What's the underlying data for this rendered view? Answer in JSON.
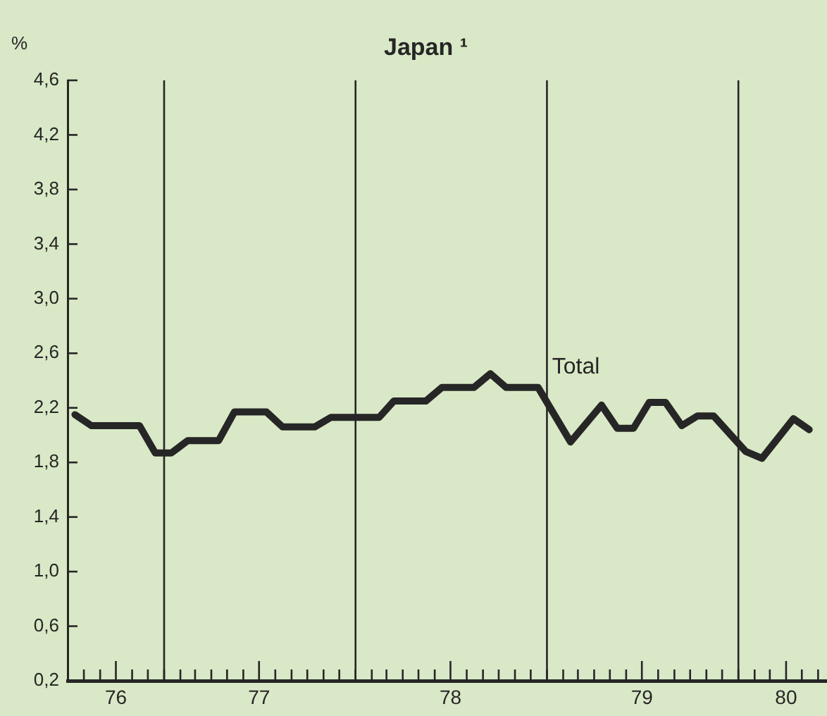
{
  "chart_data": {
    "type": "line",
    "title": "Japan ¹",
    "ylabel": "%",
    "x": [
      "1976-07-15",
      "1976-08-15",
      "1976-11-15",
      "1976-12-15",
      "1977-01-15",
      "1977-02-15",
      "1977-04-15",
      "1977-05-15",
      "1977-07-15",
      "1977-08-15",
      "1977-10-15",
      "1977-11-15",
      "1978-02-15",
      "1978-03-15",
      "1978-05-15",
      "1978-06-15",
      "1978-08-15",
      "1978-09-15",
      "1978-10-15",
      "1978-12-15",
      "1979-02-15",
      "1979-04-15",
      "1979-05-15",
      "1979-06-15",
      "1979-07-15",
      "1979-08-15",
      "1979-09-15",
      "1979-10-15",
      "1979-11-15",
      "1980-01-15",
      "1980-02-15",
      "1980-04-15",
      "1980-05-15"
    ],
    "series": [
      {
        "name": "Total",
        "color": "#262626",
        "values": [
          2.15,
          2.07,
          2.07,
          1.87,
          1.87,
          1.96,
          1.96,
          2.17,
          2.17,
          2.06,
          2.06,
          2.13,
          2.13,
          2.25,
          2.25,
          2.35,
          2.35,
          2.45,
          2.35,
          2.35,
          1.95,
          2.22,
          2.05,
          2.05,
          2.24,
          2.24,
          2.07,
          2.14,
          2.14,
          1.88,
          1.83,
          2.12,
          2.04
        ]
      }
    ],
    "xlim": [
      "1976-07-01",
      "1980-06-18"
    ],
    "xticks": [
      {
        "value": "1976-08",
        "label": null
      },
      {
        "value": "1976-09",
        "label": null
      },
      {
        "value": "1976-10",
        "label": "76"
      },
      {
        "value": "1976-11",
        "label": null
      },
      {
        "value": "1976-12",
        "label": null
      },
      {
        "value": "1977-01",
        "label": null
      },
      {
        "value": "1977-02",
        "label": null
      },
      {
        "value": "1977-03",
        "label": null
      },
      {
        "value": "1977-04",
        "label": null
      },
      {
        "value": "1977-05",
        "label": null
      },
      {
        "value": "1977-06",
        "label": null
      },
      {
        "value": "1977-07",
        "label": "77"
      },
      {
        "value": "1977-08",
        "label": null
      },
      {
        "value": "1977-09",
        "label": null
      },
      {
        "value": "1977-10",
        "label": null
      },
      {
        "value": "1977-11",
        "label": null
      },
      {
        "value": "1977-12",
        "label": null
      },
      {
        "value": "1978-01",
        "label": null
      },
      {
        "value": "1978-02",
        "label": null
      },
      {
        "value": "1978-03",
        "label": null
      },
      {
        "value": "1978-04",
        "label": null
      },
      {
        "value": "1978-05",
        "label": null
      },
      {
        "value": "1978-06",
        "label": null
      },
      {
        "value": "1978-07",
        "label": "78"
      },
      {
        "value": "1978-08",
        "label": null
      },
      {
        "value": "1978-09",
        "label": null
      },
      {
        "value": "1978-10",
        "label": null
      },
      {
        "value": "1978-11",
        "label": null
      },
      {
        "value": "1978-12",
        "label": null
      },
      {
        "value": "1979-01",
        "label": null
      },
      {
        "value": "1979-02",
        "label": null
      },
      {
        "value": "1979-03",
        "label": null
      },
      {
        "value": "1979-04",
        "label": null
      },
      {
        "value": "1979-05",
        "label": null
      },
      {
        "value": "1979-06",
        "label": null
      },
      {
        "value": "1979-07",
        "label": "79"
      },
      {
        "value": "1979-08",
        "label": null
      },
      {
        "value": "1979-09",
        "label": null
      },
      {
        "value": "1979-10",
        "label": null
      },
      {
        "value": "1979-11",
        "label": null
      },
      {
        "value": "1979-12",
        "label": null
      },
      {
        "value": "1980-01",
        "label": null
      },
      {
        "value": "1980-02",
        "label": null
      },
      {
        "value": "1980-03",
        "label": null
      },
      {
        "value": "1980-04",
        "label": "80"
      },
      {
        "value": "1980-05",
        "label": null
      },
      {
        "value": "1980-06",
        "label": null
      }
    ],
    "ylim": [
      0.2,
      4.6
    ],
    "yticks": [
      {
        "value": 0.2,
        "label": "0,2"
      },
      {
        "value": 0.6,
        "label": "0,6"
      },
      {
        "value": 1.0,
        "label": "1,0"
      },
      {
        "value": 1.4,
        "label": "1,4"
      },
      {
        "value": 1.8,
        "label": "1,8"
      },
      {
        "value": 2.2,
        "label": "2,2"
      },
      {
        "value": 2.6,
        "label": "2,6"
      },
      {
        "value": 3.0,
        "label": "3,0"
      },
      {
        "value": 3.4,
        "label": "3,4"
      },
      {
        "value": 3.8,
        "label": "3,8"
      },
      {
        "value": 4.2,
        "label": "4,2"
      },
      {
        "value": 4.6,
        "label": "4,6"
      }
    ],
    "ref_lines": [
      {
        "axis": "x",
        "value": "1977-01"
      },
      {
        "axis": "x",
        "value": "1978-01"
      },
      {
        "axis": "x",
        "value": "1979-01"
      },
      {
        "axis": "x",
        "value": "1980-01"
      }
    ],
    "grid": false,
    "legend": false,
    "marker": "none",
    "line_style": "solid"
  }
}
